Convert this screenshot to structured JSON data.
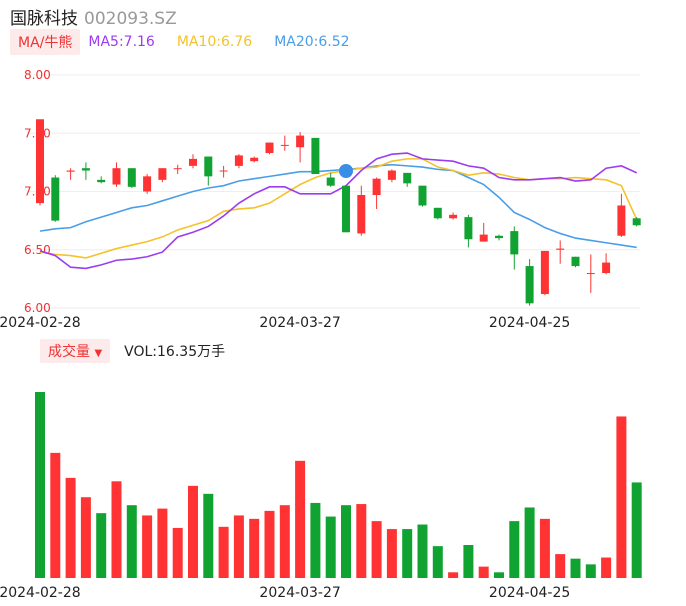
{
  "header": {
    "name": "国脉科技",
    "code": "002093.SZ"
  },
  "ma_legend": {
    "badge": "MA/牛熊",
    "ma5": "MA5:7.16",
    "ma10": "MA10:6.76",
    "ma20": "MA20:6.52"
  },
  "volume_legend": {
    "badge": "成交量",
    "badge_arrow": "▼",
    "value": "VOL:16.35万手"
  },
  "colors": {
    "up": "#ff3333",
    "down": "#11a331",
    "ma5": "#9b3cf0",
    "ma10": "#f5c22a",
    "ma20": "#4a9ee8",
    "label": "#e33333"
  },
  "chart_data": [
    {
      "type": "candlestick",
      "y_ticks": [
        "8.00",
        "7.50",
        "7.00",
        "6.50",
        "6.00"
      ],
      "ylim": [
        6.0,
        8.0
      ],
      "grid": true,
      "x_tick_labels": [
        {
          "index": 0,
          "label": "2024-02-28"
        },
        {
          "index": 17,
          "label": "2024-03-27"
        },
        {
          "index": 32,
          "label": "2024-04-25"
        }
      ],
      "candles": [
        {
          "o": 6.9,
          "c": 7.62,
          "h": 7.62,
          "l": 6.88
        },
        {
          "o": 7.12,
          "c": 6.75,
          "h": 7.14,
          "l": 6.74
        },
        {
          "o": 7.17,
          "c": 7.18,
          "h": 7.2,
          "l": 7.1
        },
        {
          "o": 7.2,
          "c": 7.18,
          "h": 7.25,
          "l": 7.1
        },
        {
          "o": 7.1,
          "c": 7.08,
          "h": 7.13,
          "l": 7.07
        },
        {
          "o": 7.06,
          "c": 7.2,
          "h": 7.25,
          "l": 7.04
        },
        {
          "o": 7.2,
          "c": 7.04,
          "h": 7.2,
          "l": 7.03
        },
        {
          "o": 7.0,
          "c": 7.13,
          "h": 7.15,
          "l": 6.98
        },
        {
          "o": 7.1,
          "c": 7.2,
          "h": 7.2,
          "l": 7.08
        },
        {
          "o": 7.2,
          "c": 7.2,
          "h": 7.23,
          "l": 7.15
        },
        {
          "o": 7.22,
          "c": 7.28,
          "h": 7.32,
          "l": 7.2
        },
        {
          "o": 7.3,
          "c": 7.13,
          "h": 7.3,
          "l": 7.05
        },
        {
          "o": 7.18,
          "c": 7.18,
          "h": 7.22,
          "l": 7.12
        },
        {
          "o": 7.22,
          "c": 7.31,
          "h": 7.32,
          "l": 7.2
        },
        {
          "o": 7.26,
          "c": 7.29,
          "h": 7.3,
          "l": 7.25
        },
        {
          "o": 7.33,
          "c": 7.42,
          "h": 7.42,
          "l": 7.32
        },
        {
          "o": 7.4,
          "c": 7.4,
          "h": 7.48,
          "l": 7.35
        },
        {
          "o": 7.38,
          "c": 7.48,
          "h": 7.51,
          "l": 7.25
        },
        {
          "o": 7.46,
          "c": 7.15,
          "h": 7.46,
          "l": 7.15
        },
        {
          "o": 7.12,
          "c": 7.05,
          "h": 7.16,
          "l": 7.04
        },
        {
          "o": 7.05,
          "c": 6.65,
          "h": 7.05,
          "l": 6.65
        },
        {
          "o": 6.64,
          "c": 6.97,
          "h": 7.05,
          "l": 6.62
        },
        {
          "o": 6.97,
          "c": 7.11,
          "h": 7.12,
          "l": 6.85
        },
        {
          "o": 7.1,
          "c": 7.18,
          "h": 7.19,
          "l": 7.08
        },
        {
          "o": 7.16,
          "c": 7.07,
          "h": 7.16,
          "l": 7.04
        },
        {
          "o": 7.05,
          "c": 6.88,
          "h": 7.05,
          "l": 6.87
        },
        {
          "o": 6.86,
          "c": 6.77,
          "h": 6.86,
          "l": 6.76
        },
        {
          "o": 6.77,
          "c": 6.8,
          "h": 6.82,
          "l": 6.76
        },
        {
          "o": 6.78,
          "c": 6.59,
          "h": 6.8,
          "l": 6.52
        },
        {
          "o": 6.57,
          "c": 6.63,
          "h": 6.73,
          "l": 6.57
        },
        {
          "o": 6.62,
          "c": 6.6,
          "h": 6.63,
          "l": 6.58
        },
        {
          "o": 6.66,
          "c": 6.46,
          "h": 6.7,
          "l": 6.33
        },
        {
          "o": 6.36,
          "c": 6.04,
          "h": 6.42,
          "l": 6.02
        },
        {
          "o": 6.12,
          "c": 6.49,
          "h": 6.49,
          "l": 6.11
        },
        {
          "o": 6.5,
          "c": 6.51,
          "h": 6.58,
          "l": 6.38
        },
        {
          "o": 6.44,
          "c": 6.36,
          "h": 6.44,
          "l": 6.35
        },
        {
          "o": 6.3,
          "c": 6.3,
          "h": 6.46,
          "l": 6.13
        },
        {
          "o": 6.3,
          "c": 6.39,
          "h": 6.47,
          "l": 6.29
        },
        {
          "o": 6.62,
          "c": 6.88,
          "h": 6.98,
          "l": 6.61
        },
        {
          "o": 6.77,
          "c": 6.71,
          "h": 6.78,
          "l": 6.7
        }
      ],
      "ma5": [
        6.49,
        6.45,
        6.35,
        6.34,
        6.37,
        6.41,
        6.42,
        6.44,
        6.48,
        6.61,
        6.65,
        6.7,
        6.79,
        6.9,
        6.98,
        7.04,
        7.04,
        6.98,
        6.98,
        6.98,
        7.05,
        7.18,
        7.28,
        7.32,
        7.33,
        7.28,
        7.27,
        7.26,
        7.22,
        7.2,
        7.12,
        7.1,
        7.1,
        7.11,
        7.12,
        7.09,
        7.1,
        7.2,
        7.22,
        7.16
      ],
      "ma10": [
        6.48,
        6.46,
        6.45,
        6.43,
        6.47,
        6.51,
        6.54,
        6.57,
        6.61,
        6.67,
        6.71,
        6.75,
        6.83,
        6.85,
        6.86,
        6.9,
        6.98,
        7.06,
        7.12,
        7.16,
        7.18,
        7.2,
        7.21,
        7.26,
        7.28,
        7.28,
        7.21,
        7.18,
        7.14,
        7.16,
        7.15,
        7.12,
        7.1,
        7.11,
        7.11,
        7.12,
        7.11,
        7.1,
        7.05,
        6.76
      ],
      "ma20": [
        6.66,
        6.68,
        6.69,
        6.74,
        6.78,
        6.82,
        6.86,
        6.88,
        6.92,
        6.96,
        7.0,
        7.03,
        7.05,
        7.09,
        7.11,
        7.13,
        7.15,
        7.17,
        7.17,
        7.18,
        7.19,
        7.2,
        7.22,
        7.23,
        7.22,
        7.21,
        7.19,
        7.18,
        7.12,
        7.06,
        6.95,
        6.82,
        6.76,
        6.69,
        6.64,
        6.6,
        6.58,
        6.56,
        6.54,
        6.52
      ]
    },
    {
      "type": "bar",
      "title": "成交量",
      "volume": [
        16.35,
        11.0,
        8.8,
        7.1,
        5.7,
        8.5,
        6.4,
        5.5,
        6.1,
        4.4,
        8.1,
        7.4,
        4.5,
        5.5,
        5.2,
        5.9,
        6.4,
        10.3,
        6.6,
        5.4,
        6.4,
        6.5,
        5.0,
        4.3,
        4.3,
        4.7,
        2.8,
        0.5,
        2.9,
        1.0,
        0.5,
        5.0,
        6.2,
        5.2,
        2.1,
        1.7,
        1.2,
        1.8,
        14.2,
        8.4
      ],
      "up": [
        false,
        true,
        true,
        true,
        false,
        true,
        false,
        true,
        true,
        true,
        true,
        false,
        true,
        true,
        true,
        true,
        true,
        true,
        false,
        false,
        false,
        true,
        true,
        true,
        false,
        false,
        false,
        true,
        false,
        true,
        false,
        false,
        false,
        true,
        true,
        false,
        false,
        true,
        true,
        false
      ]
    }
  ]
}
